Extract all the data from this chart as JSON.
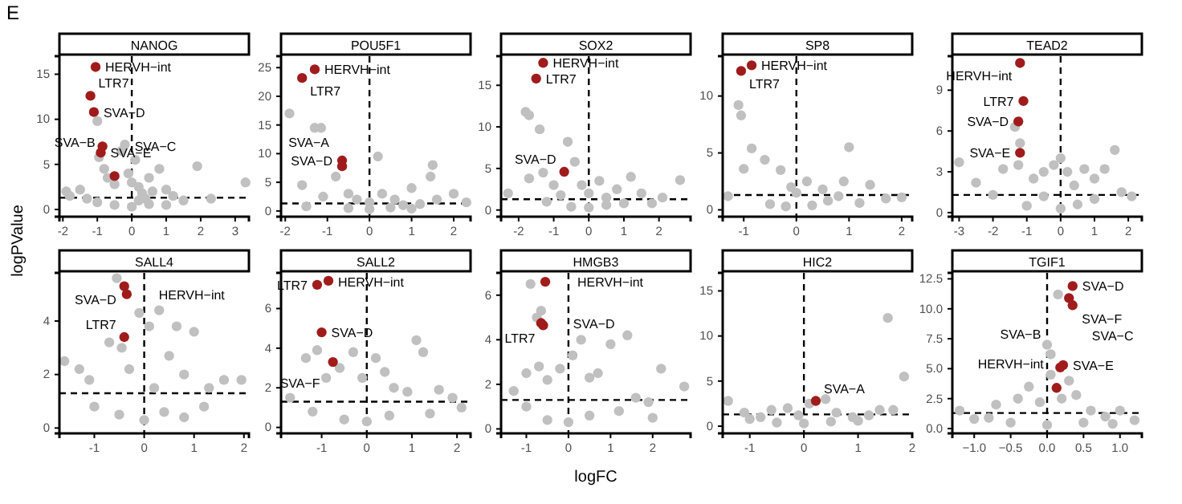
{
  "chart_data": [
    {
      "type": "scatter",
      "title": "NANOG",
      "annotations": [
        "E",
        {
          "text": "HERVH−int",
          "x": -1.05,
          "y": 15.8
        },
        {
          "text": "LTR7",
          "x": -1.2,
          "y": 12.6
        },
        {
          "text": "SVA−D",
          "x": -1.1,
          "y": 10.8
        },
        {
          "text": "SVA−C",
          "x": -0.85,
          "y": 7.0
        },
        {
          "text": "SVA−E",
          "x": -0.9,
          "y": 6.3
        },
        {
          "text": "SVA−B",
          "x": -0.5,
          "y": 3.7
        }
      ],
      "xlim": [
        -2.1,
        3.4
      ],
      "xticks": [
        -2,
        -1,
        0,
        1,
        2,
        3
      ],
      "ylim": [
        -0.8,
        17
      ],
      "yticks": [
        0,
        5,
        10,
        15
      ],
      "marker": "circle",
      "ref_lines": [
        {
          "axis": "x",
          "value": 0,
          "line_style": "dashed"
        },
        {
          "axis": "y",
          "value": 1.3,
          "line_style": "dashed"
        }
      ],
      "series": [
        {
          "color": "#c0c0c0",
          "x": [
            -1.9,
            -1.8,
            -1.5,
            -1.3,
            -1.0,
            -0.95,
            -0.8,
            -0.7,
            -0.5,
            -0.3,
            -0.2,
            -0.1,
            0,
            0.1,
            0.2,
            0.3,
            0.4,
            0.5,
            0.6,
            0.8,
            1,
            1.2,
            1.5,
            1.9,
            2.3,
            3.3,
            -0.5,
            0,
            0.5,
            -1,
            1,
            0.2
          ],
          "values": [
            2,
            1.5,
            2.2,
            1.2,
            9.8,
            5.8,
            4.5,
            3.5,
            2.8,
            6.5,
            7.2,
            4,
            3,
            5.5,
            2.5,
            1.8,
            1.2,
            3.5,
            2,
            4.5,
            2.2,
            1.5,
            1,
            4.8,
            1.2,
            3,
            0.5,
            0.3,
            0.6,
            0.8,
            0.5,
            1
          ]
        },
        {
          "color": "#a01c1c",
          "x": [
            -1.05,
            -1.2,
            -1.1,
            -0.85,
            -0.9,
            -0.5
          ],
          "values": [
            15.8,
            12.6,
            10.8,
            7.0,
            6.3,
            3.7
          ]
        }
      ]
    },
    {
      "type": "scatter",
      "title": "POU5F1",
      "annotations": [
        {
          "text": "HERVH−int",
          "x": -1.3,
          "y": 24.7
        },
        {
          "text": "LTR7",
          "x": -1.6,
          "y": 23.2
        },
        {
          "text": "SVA−D",
          "x": -0.65,
          "y": 8.8
        },
        {
          "text": "SVA−A",
          "x": -0.65,
          "y": 7.8
        }
      ],
      "xlim": [
        -2.1,
        2.4
      ],
      "xticks": [
        -2,
        -1,
        0,
        1,
        2
      ],
      "ylim": [
        -1,
        27
      ],
      "yticks": [
        0,
        5,
        10,
        15,
        20,
        25
      ],
      "marker": "circle",
      "ref_lines": [
        {
          "axis": "x",
          "value": 0,
          "line_style": "dashed"
        },
        {
          "axis": "y",
          "value": 1.3,
          "line_style": "dashed"
        }
      ],
      "series": [
        {
          "color": "#c0c0c0",
          "x": [
            -1.9,
            -1.3,
            -1.15,
            -1.6,
            -1.1,
            -0.8,
            -0.5,
            -0.3,
            0,
            0.2,
            0.3,
            0.6,
            0.8,
            1,
            1.5,
            1.45,
            1.6,
            2,
            2.3,
            -0.5,
            0,
            0.5,
            1,
            -1.5,
            1.2
          ],
          "values": [
            17,
            14.5,
            14.5,
            4.5,
            2.5,
            6,
            3,
            2,
            1.5,
            9.5,
            3,
            2,
            1,
            4,
            8,
            6,
            2,
            3,
            1.5,
            0.5,
            0.3,
            0.6,
            0.4,
            0.8,
            1.2
          ]
        },
        {
          "color": "#a01c1c",
          "x": [
            -1.3,
            -1.6,
            -0.65,
            -0.65
          ],
          "values": [
            24.7,
            23.2,
            8.8,
            7.8
          ]
        }
      ]
    },
    {
      "type": "scatter",
      "title": "SOX2",
      "annotations": [
        {
          "text": "HERVH−int",
          "x": -1.3,
          "y": 17.7
        },
        {
          "text": "LTR7",
          "x": -1.5,
          "y": 15.8
        },
        {
          "text": "SVA−D",
          "x": -0.7,
          "y": 4.6
        }
      ],
      "xlim": [
        -2.5,
        2.9
      ],
      "xticks": [
        -2,
        -1,
        0,
        1,
        2
      ],
      "ylim": [
        -0.8,
        18.5
      ],
      "yticks": [
        0,
        5,
        10,
        15
      ],
      "marker": "circle",
      "ref_lines": [
        {
          "axis": "x",
          "value": 0,
          "line_style": "dashed"
        },
        {
          "axis": "y",
          "value": 1.3,
          "line_style": "dashed"
        }
      ],
      "series": [
        {
          "color": "#c0c0c0",
          "x": [
            -2.3,
            -1.8,
            -1.7,
            -1.4,
            -1.7,
            -1.3,
            -1,
            -0.6,
            -0.4,
            -0.2,
            0,
            0.3,
            0.5,
            0.8,
            1.2,
            1.5,
            2.1,
            2.6,
            -0.5,
            0,
            0.5,
            1,
            -1.2,
            1.8,
            -0.8
          ],
          "values": [
            2,
            11.8,
            11.4,
            9.7,
            3.8,
            4.5,
            3,
            8.2,
            5.8,
            3,
            2,
            3.5,
            1.5,
            2.5,
            4,
            2,
            1.5,
            3.6,
            0.4,
            0.3,
            0.6,
            0.8,
            1,
            0.8,
            1.8
          ]
        },
        {
          "color": "#a01c1c",
          "x": [
            -1.3,
            -1.5,
            -0.7
          ],
          "values": [
            17.7,
            15.8,
            4.6
          ]
        }
      ]
    },
    {
      "type": "scatter",
      "title": "SP8",
      "annotations": [
        {
          "text": "HERVH−int",
          "x": -0.85,
          "y": 12.7
        },
        {
          "text": "LTR7",
          "x": -1.05,
          "y": 12.2
        }
      ],
      "xlim": [
        -1.4,
        2.2
      ],
      "xticks": [
        -1,
        0,
        1,
        2
      ],
      "ylim": [
        -0.6,
        13.5
      ],
      "yticks": [
        0,
        5,
        10
      ],
      "marker": "circle",
      "ref_lines": [
        {
          "axis": "x",
          "value": 0,
          "line_style": "dashed"
        },
        {
          "axis": "y",
          "value": 1.3,
          "line_style": "dashed"
        }
      ],
      "series": [
        {
          "color": "#c0c0c0",
          "x": [
            -1.1,
            -1.05,
            -1.0,
            -0.85,
            -0.6,
            -0.3,
            -0.1,
            0,
            0.2,
            0.5,
            0.8,
            1.0,
            0.9,
            1.4,
            1.7,
            2.0,
            -1.3,
            -0.5,
            0.3,
            1.2,
            0.6,
            -0.2
          ],
          "values": [
            9.2,
            8.3,
            3.6,
            5.4,
            4.4,
            3.5,
            2,
            1.5,
            2.5,
            1.8,
            1.2,
            5.5,
            2.5,
            2.2,
            1.0,
            1.1,
            1.2,
            0.5,
            0.4,
            0.6,
            0.8,
            0.3
          ]
        },
        {
          "color": "#a01c1c",
          "x": [
            -0.85,
            -1.05
          ],
          "values": [
            12.7,
            12.2
          ]
        }
      ]
    },
    {
      "type": "scatter",
      "title": "TEAD2",
      "annotations": [
        {
          "text": "HERVH−int",
          "x": -1.2,
          "y": 11.0
        },
        {
          "text": "LTR7",
          "x": -1.1,
          "y": 8.2
        },
        {
          "text": "SVA−D",
          "x": -1.25,
          "y": 6.7
        },
        {
          "text": "SVA−E",
          "x": -1.2,
          "y": 4.4
        }
      ],
      "xlim": [
        -3.2,
        2.4
      ],
      "xticks": [
        -3,
        -2,
        -1,
        0,
        1,
        2
      ],
      "ylim": [
        -0.3,
        11.5
      ],
      "yticks": [
        0,
        3,
        6,
        9
      ],
      "marker": "circle",
      "ref_lines": [
        {
          "axis": "x",
          "value": 0,
          "line_style": "dashed"
        },
        {
          "axis": "y",
          "value": 1.3,
          "line_style": "dashed"
        }
      ],
      "series": [
        {
          "color": "#c0c0c0",
          "x": [
            -3,
            -2.5,
            -1.7,
            -1.35,
            -1.2,
            -1.25,
            -0.8,
            -0.5,
            -0.2,
            0,
            0.2,
            0.4,
            0.7,
            1.0,
            1.3,
            1.6,
            1.8,
            2.1,
            -1,
            0,
            0.5,
            1,
            -0.5,
            -2
          ],
          "values": [
            3.7,
            2.2,
            3.2,
            6.3,
            5.1,
            3.5,
            2.5,
            3,
            3.5,
            4,
            3,
            2,
            3.2,
            2.5,
            3.2,
            4.6,
            1.5,
            1.2,
            0.5,
            0.3,
            0.6,
            1,
            1.2,
            1.3
          ]
        },
        {
          "color": "#a01c1c",
          "x": [
            -1.2,
            -1.1,
            -1.25,
            -1.2
          ],
          "values": [
            11.0,
            8.2,
            6.7,
            4.4
          ]
        }
      ]
    },
    {
      "type": "scatter",
      "title": "SALL4",
      "ylabel": "logPValue",
      "annotations": [
        {
          "text": "SVA−D",
          "x": -0.4,
          "y": 5.3
        },
        {
          "text": "HERVH−int",
          "x": -0.35,
          "y": 5.0
        },
        {
          "text": "LTR7",
          "x": -0.4,
          "y": 3.4
        }
      ],
      "xlim": [
        -1.7,
        2.1
      ],
      "xticks": [
        -1,
        0,
        1,
        2
      ],
      "ylim": [
        -0.2,
        5.8
      ],
      "yticks": [
        0,
        2,
        4
      ],
      "marker": "circle",
      "ref_lines": [
        {
          "axis": "x",
          "value": 0,
          "line_style": "dashed"
        },
        {
          "axis": "y",
          "value": 1.3,
          "line_style": "dashed"
        }
      ],
      "series": [
        {
          "color": "#c0c0c0",
          "x": [
            -1.6,
            -1.3,
            -1.1,
            -0.7,
            -0.55,
            -0.45,
            -0.3,
            -0.1,
            0.1,
            0.3,
            0.5,
            0.65,
            0.8,
            1.0,
            1.3,
            1.6,
            1.95,
            -0.5,
            0,
            0.4,
            -1,
            0.8,
            0.2,
            1.2
          ],
          "values": [
            2.5,
            2.2,
            1.8,
            3.2,
            5.6,
            3.0,
            2.2,
            4.3,
            3.8,
            4.4,
            2.7,
            3.8,
            2,
            3.6,
            1.5,
            1.8,
            1.8,
            0.5,
            0.3,
            0.6,
            0.8,
            0.4,
            1.5,
            0.8
          ]
        },
        {
          "color": "#a01c1c",
          "x": [
            -0.4,
            -0.35,
            -0.4
          ],
          "values": [
            5.3,
            5.0,
            3.4
          ]
        }
      ]
    },
    {
      "type": "scatter",
      "title": "SALL2",
      "annotations": [
        {
          "text": "LTR7",
          "x": -1.1,
          "y": 7.2
        },
        {
          "text": "HERVH−int",
          "x": -0.85,
          "y": 7.35
        },
        {
          "text": "SVA−D",
          "x": -1.0,
          "y": 4.8
        },
        {
          "text": "SVA−F",
          "x": -0.75,
          "y": 3.3
        }
      ],
      "xlim": [
        -1.9,
        2.3
      ],
      "xticks": [
        -1,
        0,
        1,
        2
      ],
      "ylim": [
        -0.3,
        7.8
      ],
      "yticks": [
        0,
        2,
        4,
        6
      ],
      "marker": "circle",
      "ref_lines": [
        {
          "axis": "x",
          "value": 0,
          "line_style": "dashed"
        },
        {
          "axis": "y",
          "value": 1.3,
          "line_style": "dashed"
        }
      ],
      "series": [
        {
          "color": "#c0c0c0",
          "x": [
            -1.7,
            -1.35,
            -1.1,
            -0.9,
            -0.6,
            -0.3,
            -0.1,
            0.2,
            0.4,
            0.6,
            0.9,
            1.1,
            1.25,
            1.6,
            1.9,
            2.1,
            -0.5,
            0,
            0.5,
            -1.2,
            1.4
          ],
          "values": [
            1.5,
            3.5,
            3.9,
            2.5,
            3,
            3.8,
            2.5,
            3.5,
            2.8,
            2,
            1.8,
            4.4,
            3.8,
            1.9,
            1.5,
            1.0,
            0.4,
            0.3,
            0.6,
            0.8,
            0.7
          ]
        },
        {
          "color": "#a01c1c",
          "x": [
            -1.1,
            -0.85,
            -1.0,
            -0.75
          ],
          "values": [
            7.2,
            7.4,
            4.8,
            3.3
          ]
        }
      ]
    },
    {
      "type": "scatter",
      "title": "HMGB3",
      "xlabel": "logFC",
      "annotations": [
        {
          "text": "HERVH−int",
          "x": -0.55,
          "y": 6.6
        },
        {
          "text": "SVA−D",
          "x": -0.65,
          "y": 4.75
        },
        {
          "text": "LTR7",
          "x": -0.6,
          "y": 4.65
        }
      ],
      "xlim": [
        -1.6,
        2.9
      ],
      "xticks": [
        -1,
        0,
        1,
        2
      ],
      "ylim": [
        -0.2,
        7.0
      ],
      "yticks": [
        0,
        2,
        4,
        6
      ],
      "marker": "circle",
      "ref_lines": [
        {
          "axis": "x",
          "value": 0,
          "line_style": "dashed"
        },
        {
          "axis": "y",
          "value": 1.3,
          "line_style": "dashed"
        }
      ],
      "series": [
        {
          "color": "#c0c0c0",
          "x": [
            -0.9,
            -0.75,
            -0.65,
            -1.3,
            -1,
            -0.7,
            -0.5,
            -0.2,
            0.1,
            0.3,
            0.5,
            0.7,
            1,
            1.4,
            1.6,
            1.9,
            2.2,
            2.75,
            -0.5,
            0,
            0.5,
            1.2,
            -1.0,
            2.0
          ],
          "values": [
            6.5,
            5.0,
            5.3,
            1.7,
            2.5,
            2.8,
            2.2,
            2.7,
            3.3,
            4,
            2.3,
            2.5,
            3.8,
            4.2,
            1.4,
            1.2,
            2.7,
            1.9,
            0.4,
            0.3,
            0.6,
            0.8,
            1.0,
            0.5
          ]
        },
        {
          "color": "#a01c1c",
          "x": [
            -0.55,
            -0.65,
            -0.6
          ],
          "values": [
            6.6,
            4.75,
            4.65
          ]
        }
      ]
    },
    {
      "type": "scatter",
      "title": "HIC2",
      "annotations": [
        {
          "text": "SVA−A",
          "x": 0.22,
          "y": 2.8
        }
      ],
      "xlim": [
        -1.5,
        2.0
      ],
      "xticks": [
        -1,
        0,
        1,
        2
      ],
      "ylim": [
        -0.8,
        17
      ],
      "yticks": [
        0,
        5,
        10,
        15
      ],
      "marker": "circle",
      "ref_lines": [
        {
          "axis": "x",
          "value": 0,
          "line_style": "dashed"
        },
        {
          "axis": "y",
          "value": 1.3,
          "line_style": "dashed"
        }
      ],
      "series": [
        {
          "color": "#c0c0c0",
          "x": [
            -1.4,
            -1.1,
            -0.8,
            -0.6,
            -0.3,
            -0.1,
            0.1,
            0.4,
            0.6,
            0.9,
            1.2,
            1.55,
            1.85,
            1.4,
            1.65,
            -0.5,
            0,
            0.5,
            1.0,
            -1.0
          ],
          "values": [
            2.8,
            1.5,
            1.0,
            1.8,
            2.0,
            1.2,
            2.5,
            3.0,
            1.5,
            1.0,
            1.2,
            12,
            5.5,
            1.8,
            1.8,
            0.4,
            0.3,
            0.5,
            0.6,
            0.8
          ]
        },
        {
          "color": "#a01c1c",
          "x": [
            0.22
          ],
          "values": [
            2.8
          ]
        }
      ]
    },
    {
      "type": "scatter",
      "title": "TGIF1",
      "annotations": [
        {
          "text": "SVA−D",
          "x": 0.35,
          "y": 11.9
        },
        {
          "text": "SVA−F",
          "x": 0.3,
          "y": 10.9
        },
        {
          "text": "SVA−C",
          "x": 0.35,
          "y": 10.3
        },
        {
          "text": "SVA−E",
          "x": 0.22,
          "y": 5.3
        },
        {
          "text": "SVA−B",
          "x": 0.18,
          "y": 5.1
        },
        {
          "text": "HERVH−int",
          "x": 0.13,
          "y": 3.4
        }
      ],
      "xlim": [
        -1.3,
        1.3
      ],
      "xticks": [
        {
          "value": -1,
          "label": "−1.0"
        },
        {
          "value": -0.5,
          "label": "−0.5"
        },
        {
          "value": 0,
          "label": "0.0"
        },
        {
          "value": 0.5,
          "label": "0.5"
        },
        {
          "value": 1,
          "label": "1.0"
        }
      ],
      "ylim": [
        -0.4,
        13
      ],
      "yticks": [
        {
          "value": 0,
          "label": "0.0"
        },
        {
          "value": 2.5,
          "label": "2.5"
        },
        {
          "value": 5,
          "label": "5.0"
        },
        {
          "value": 7.5,
          "label": "7.5"
        },
        {
          "value": 10,
          "label": "10.0"
        },
        {
          "value": 12.5,
          "label": "12.5"
        }
      ],
      "marker": "circle",
      "ref_lines": [
        {
          "axis": "x",
          "value": 0,
          "line_style": "dashed"
        },
        {
          "axis": "y",
          "value": 1.3,
          "line_style": "dashed"
        }
      ],
      "series": [
        {
          "color": "#c0c0c0",
          "x": [
            -1.2,
            -1.0,
            -0.7,
            -0.4,
            -0.25,
            -0.1,
            0.0,
            0.05,
            0.05,
            0.2,
            0.3,
            0.4,
            0.6,
            0.8,
            1.0,
            1.2,
            0.15,
            -0.5,
            0,
            0.5,
            0.9,
            -0.8
          ],
          "values": [
            1.5,
            0.8,
            2.0,
            2.5,
            3.5,
            2.2,
            7.0,
            6.2,
            4.5,
            2.5,
            4.0,
            2.8,
            1.5,
            1.0,
            1.5,
            0.7,
            11.2,
            0.5,
            0.3,
            0.5,
            0.4,
            0.9
          ]
        },
        {
          "color": "#a01c1c",
          "x": [
            0.35,
            0.3,
            0.35,
            0.22,
            0.18,
            0.13
          ],
          "values": [
            11.9,
            10.9,
            10.3,
            5.3,
            5.1,
            3.4
          ]
        }
      ]
    }
  ]
}
